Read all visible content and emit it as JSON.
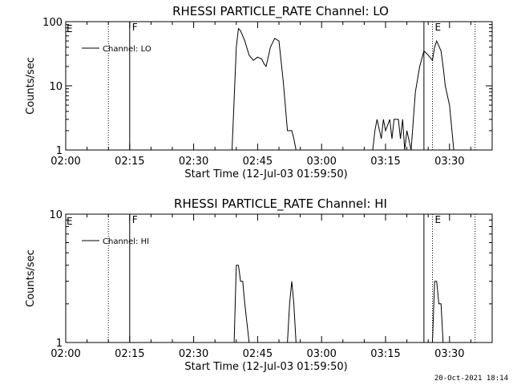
{
  "footer_timestamp": "20-Oct-2021 18:14",
  "chart_data": [
    {
      "type": "line",
      "title": "RHESSI PARTICLE_RATE Channel: LO",
      "xlabel": "Start Time (12-Jul-03 01:59:50)",
      "ylabel": "Counts/sec",
      "y_scale": "log",
      "ylim": [
        1,
        100
      ],
      "xlim": [
        "02:00",
        "03:40"
      ],
      "x_ticks": [
        "02:00",
        "02:15",
        "02:30",
        "02:45",
        "03:00",
        "03:15",
        "03:30"
      ],
      "y_ticks": [
        "1",
        "10",
        "100"
      ],
      "legend": {
        "label": "Channel: LO",
        "placement": "top-left"
      },
      "markers": [
        {
          "time": "02:10",
          "style": "dotted",
          "label": ""
        },
        {
          "time": "02:15",
          "style": "solid",
          "label": "F"
        },
        {
          "time": "03:24",
          "style": "solid",
          "label": ""
        },
        {
          "time": "03:26",
          "style": "dotted",
          "label": "E"
        },
        {
          "time": "03:36",
          "style": "dotted",
          "label": ""
        }
      ],
      "edge_label": "E",
      "series": [
        {
          "name": "Channel: LO",
          "x": [
            "02:39",
            "02:40",
            "02:40:30",
            "02:41",
            "02:41:30",
            "02:42",
            "02:43",
            "02:44",
            "02:45",
            "02:46",
            "02:46:30",
            "02:47",
            "02:48",
            "02:49",
            "02:50",
            "02:51",
            "02:52",
            "02:53",
            "02:53:30",
            "02:54"
          ],
          "y": [
            1,
            40,
            78,
            72,
            60,
            50,
            30,
            25,
            28,
            26,
            22,
            20,
            40,
            55,
            50,
            12,
            2,
            2,
            1.5,
            1
          ],
          "segments": [
            [
              0,
              19
            ]
          ]
        },
        {
          "name": "Channel: LO",
          "x": [
            "03:12",
            "03:12:30",
            "03:13",
            "03:14",
            "03:14:30",
            "03:15",
            "03:16",
            "03:16:30",
            "03:17",
            "03:18",
            "03:18:30",
            "03:19",
            "03:19:30",
            "03:20",
            "03:21",
            "03:22",
            "03:23",
            "03:24",
            "03:25",
            "03:26",
            "03:26:30",
            "03:27",
            "03:28",
            "03:28:30",
            "03:29",
            "03:30",
            "03:31"
          ],
          "y": [
            1,
            2,
            3,
            1.5,
            3,
            2,
            3,
            1.5,
            3,
            3,
            1.5,
            3,
            1,
            2,
            1,
            8,
            20,
            35,
            30,
            25,
            40,
            50,
            35,
            20,
            10,
            5,
            1
          ]
        }
      ]
    },
    {
      "type": "line",
      "title": "RHESSI PARTICLE_RATE Channel: HI",
      "xlabel": "Start Time (12-Jul-03 01:59:50)",
      "ylabel": "Counts/sec",
      "y_scale": "log",
      "ylim": [
        1,
        10
      ],
      "xlim": [
        "02:00",
        "03:40"
      ],
      "x_ticks": [
        "02:00",
        "02:15",
        "02:30",
        "02:45",
        "03:00",
        "03:15",
        "03:30"
      ],
      "y_ticks": [
        "1",
        "10"
      ],
      "legend": {
        "label": "Channel: HI",
        "placement": "top-left"
      },
      "markers": [
        {
          "time": "02:10",
          "style": "dotted",
          "label": ""
        },
        {
          "time": "02:15",
          "style": "solid",
          "label": "F"
        },
        {
          "time": "03:24",
          "style": "solid",
          "label": ""
        },
        {
          "time": "03:26",
          "style": "dotted",
          "label": "E"
        },
        {
          "time": "03:36",
          "style": "dotted",
          "label": ""
        }
      ],
      "edge_label": "E",
      "series": [
        {
          "name": "Channel: HI",
          "x": [
            "02:39:30",
            "02:40",
            "02:40:30",
            "02:41",
            "02:41:30",
            "02:42",
            "02:43"
          ],
          "y": [
            1,
            4,
            4,
            3,
            3,
            2,
            1
          ]
        },
        {
          "name": "Channel: HI",
          "x": [
            "02:52",
            "02:52:30",
            "02:53",
            "02:53:30",
            "02:54"
          ],
          "y": [
            1,
            2,
            3,
            2,
            1
          ]
        },
        {
          "name": "Channel: HI",
          "x": [
            "03:26",
            "03:26:30",
            "03:27",
            "03:27:30",
            "03:28",
            "03:28:30"
          ],
          "y": [
            1,
            3,
            3,
            2,
            2,
            1
          ]
        }
      ]
    }
  ]
}
